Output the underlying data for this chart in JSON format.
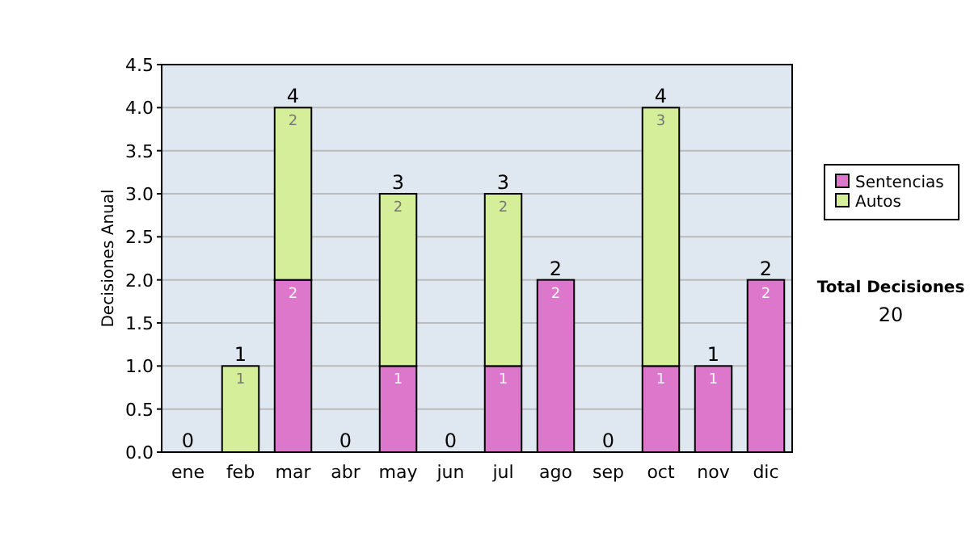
{
  "chart_data": {
    "type": "bar",
    "stacked": true,
    "ylabel": "Decisiones Anual",
    "categories": [
      "ene",
      "feb",
      "mar",
      "abr",
      "may",
      "jun",
      "jul",
      "ago",
      "sep",
      "oct",
      "nov",
      "dic"
    ],
    "series": [
      {
        "name": "Sentencias",
        "color": "#dd77cc",
        "values": [
          0,
          0,
          2,
          0,
          1,
          0,
          1,
          2,
          0,
          1,
          1,
          2
        ],
        "value_labels": [
          null,
          null,
          "2",
          null,
          "1",
          null,
          "1",
          "2",
          null,
          "1",
          "1",
          "2"
        ]
      },
      {
        "name": "Autos",
        "color": "#d4ee99",
        "values": [
          0,
          1,
          2,
          0,
          2,
          0,
          2,
          0,
          0,
          3,
          0,
          0
        ],
        "value_labels": [
          null,
          "1",
          "2",
          null,
          "2",
          null,
          "2",
          null,
          null,
          "3",
          null,
          null
        ]
      }
    ],
    "totals": [
      "0",
      "1",
      "4",
      "0",
      "3",
      "0",
      "3",
      "2",
      "0",
      "4",
      "1",
      "2"
    ],
    "ylim": [
      0,
      4.5
    ],
    "yticks": [
      {
        "value": 0,
        "label": "0.0"
      },
      {
        "value": 0.5,
        "label": "0.5"
      },
      {
        "value": 1,
        "label": "1.0"
      },
      {
        "value": 1.5,
        "label": "1.5"
      },
      {
        "value": 2,
        "label": "2.0"
      },
      {
        "value": 2.5,
        "label": "2.5"
      },
      {
        "value": 3,
        "label": "3.0"
      },
      {
        "value": 3.5,
        "label": "3.5"
      },
      {
        "value": 4,
        "label": "4.0"
      },
      {
        "value": 4.5,
        "label": "4.5"
      }
    ],
    "grid": "y",
    "legend": "right",
    "annotations": [
      "Total Decisiones",
      "20"
    ]
  }
}
